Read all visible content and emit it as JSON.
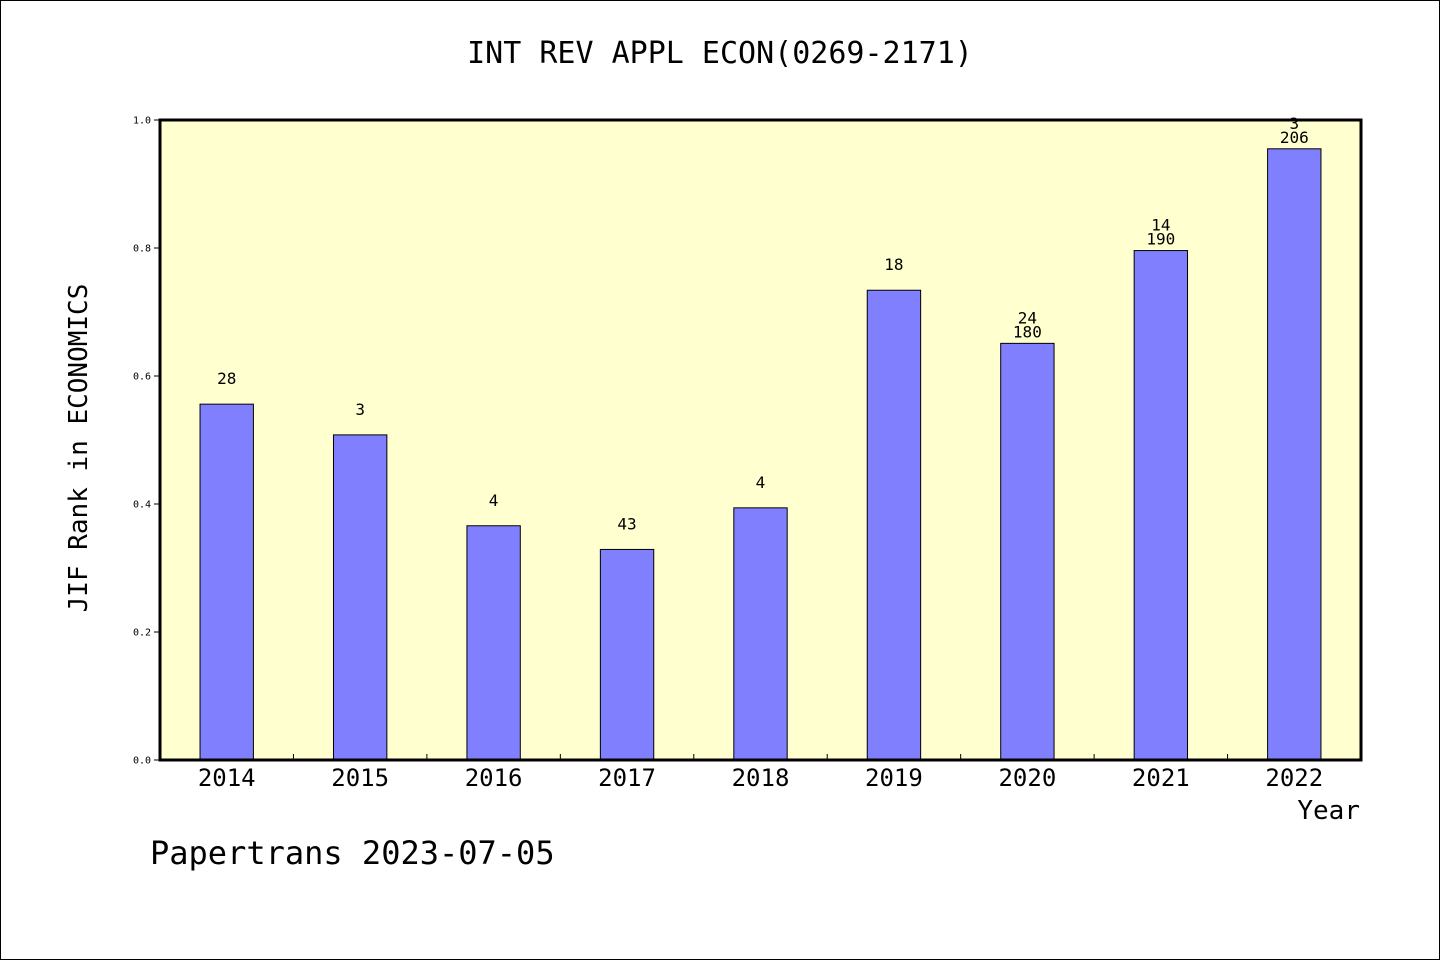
{
  "chart_data": {
    "type": "bar",
    "title": "INT REV APPL ECON(0269-2171)",
    "xlabel": "Year",
    "ylabel": "JIF Rank in ECONOMICS",
    "categories": [
      "2014",
      "2015",
      "2016",
      "2017",
      "2018",
      "2019",
      "2020",
      "2021",
      "2022"
    ],
    "values": [
      0.556,
      0.508,
      0.366,
      0.329,
      0.394,
      0.734,
      0.651,
      0.796,
      0.955
    ],
    "bar_labels": [
      [
        "28"
      ],
      [
        "3"
      ],
      [
        "4"
      ],
      [
        "43"
      ],
      [
        "4"
      ],
      [
        "18"
      ],
      [
        "24",
        "180"
      ],
      [
        "14",
        "190"
      ],
      [
        "3",
        "206"
      ]
    ],
    "ylim": [
      0,
      1.0
    ],
    "yticks": [
      "0.0",
      "0.2",
      "0.4",
      "0.6",
      "0.8",
      "1.0"
    ],
    "grid": false,
    "colors": {
      "bar": "#8080ff",
      "plot_background": "#ffffd0",
      "axes": "#000000"
    }
  },
  "footer": {
    "note": "Papertrans 2023-07-05"
  }
}
